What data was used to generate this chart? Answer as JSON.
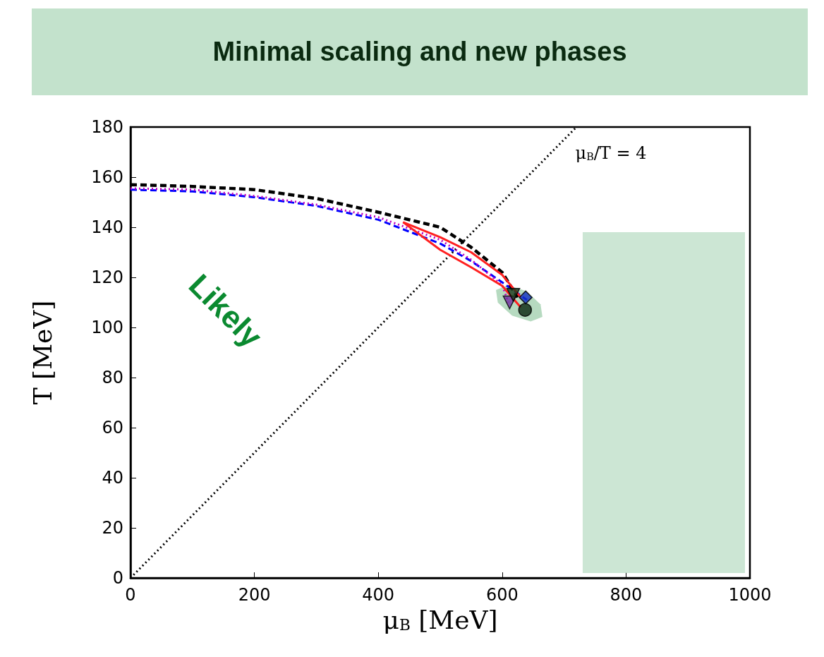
{
  "chart_data": {
    "type": "line",
    "title": "Minimal scaling and new phases",
    "xlabel": "μ$_{B}$ [MeV]",
    "ylabel": "T [MeV]",
    "xlim": [
      0,
      1000
    ],
    "xticks": [
      0,
      200,
      400,
      600,
      800,
      1000
    ],
    "ylim": [
      0,
      180
    ],
    "yticks": [
      0,
      20,
      40,
      60,
      80,
      100,
      120,
      140,
      160,
      180
    ],
    "grid": false,
    "series": [
      {
        "type": "area",
        "color": "#c3e2cc",
        "x": [
          730,
          992,
          992,
          730
        ],
        "values": [
          2,
          2,
          138,
          138
        ]
      },
      {
        "type": "area",
        "color": "#a9d3b5",
        "x": [
          665,
          646,
          616,
          593,
          590,
          609,
          639,
          662
        ],
        "values": [
          104.2,
          102.4,
          104.7,
          109.9,
          114.9,
          116.8,
          114.5,
          109.2
        ]
      },
      {
        "color": "#000000",
        "line_style": "dotted",
        "x": [
          0,
          720
        ],
        "values": [
          0,
          180
        ]
      },
      {
        "color": "#0000ff",
        "line_style": "dashed",
        "x": [
          0,
          100,
          200,
          300,
          400,
          500,
          550,
          600,
          640
        ],
        "values": [
          155,
          154.3,
          152,
          148.5,
          143,
          133.5,
          126.5,
          118,
          111
        ]
      },
      {
        "color": "#c000c0",
        "line_style": "dotted",
        "x": [
          0,
          100,
          200,
          300,
          400,
          500,
          550,
          600,
          610
        ],
        "values": [
          155.5,
          155,
          152.5,
          149,
          144,
          135,
          127,
          117,
          110
        ]
      },
      {
        "color": "#000000",
        "line_style": "dashed",
        "x": [
          0,
          100,
          200,
          300,
          400,
          500,
          550,
          600,
          625
        ],
        "values": [
          157,
          156.3,
          155,
          151.5,
          146,
          140,
          132,
          122,
          112
        ]
      },
      {
        "color": "#ff2020",
        "line_style": "solid",
        "x": [
          440,
          500,
          550,
          600,
          630
        ],
        "values": [
          142,
          136,
          130,
          121,
          112
        ]
      },
      {
        "color": "#ff2020",
        "line_style": "solid",
        "x": [
          440,
          500,
          550,
          600,
          630
        ],
        "values": [
          142,
          131,
          124,
          116.6,
          108
        ]
      },
      {
        "type": "scatter",
        "color": "#7030a0",
        "marker": "triangle",
        "x": [
          612
        ],
        "values": [
          110
        ]
      },
      {
        "type": "scatter",
        "color": "#1a3a1a",
        "marker": "triangle",
        "x": [
          618
        ],
        "values": [
          113
        ]
      },
      {
        "type": "scatter",
        "color": "#0a260f",
        "marker": "circle",
        "x": [
          637
        ],
        "values": [
          107
        ]
      },
      {
        "type": "scatter",
        "color": "#1030c0",
        "marker": "diamond",
        "x": [
          638
        ],
        "values": [
          112
        ]
      }
    ],
    "annotations": [
      "μ$_{B}$/T = 4",
      "Likely"
    ]
  }
}
